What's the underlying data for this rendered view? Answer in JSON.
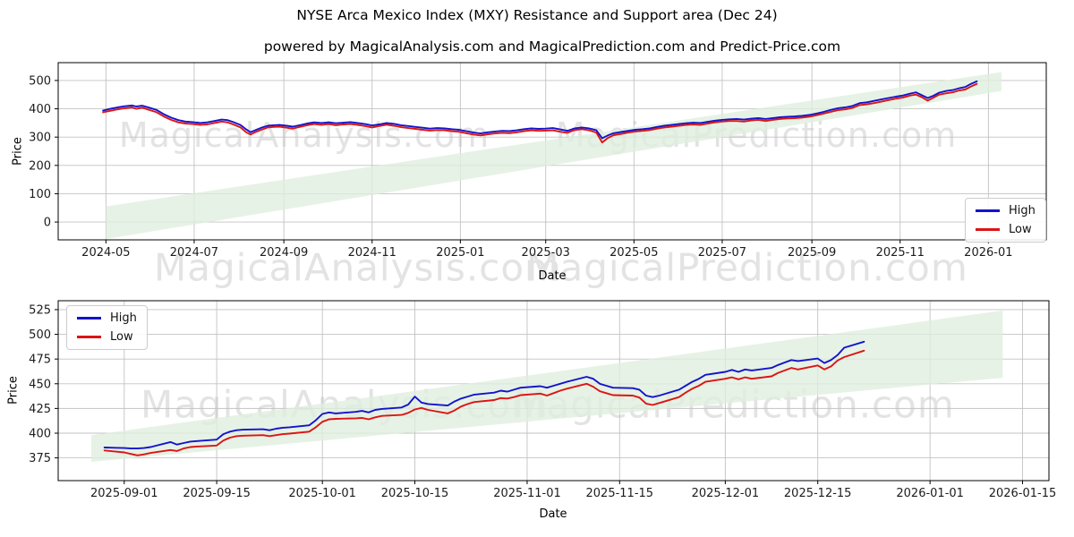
{
  "figure": {
    "title": "NYSE Arca Mexico Index (MXY) Resistance and Support area (Dec 24)",
    "subtitle": "powered by MagicalAnalysis.com and MagicalPrediction.com and Predict-Price.com"
  },
  "watermark": {
    "analysis": "MagicalAnalysis.com",
    "prediction": "MagicalPrediction.com"
  },
  "legend": {
    "high": "High",
    "low": "Low"
  },
  "colors": {
    "high": "#1313cd",
    "low": "#dc1414",
    "band": "#dfeede",
    "grid": "#c2c2c2",
    "frame": "#000000",
    "tick_text": "#1c1c1c",
    "watermark": "#e3e3e3"
  },
  "chart_data": [
    {
      "type": "line",
      "title": "",
      "xlabel": "Date",
      "ylabel": "Price",
      "xlim": [
        "2024-03-29",
        "2026-02-10"
      ],
      "ylim": [
        -63,
        563
      ],
      "grid": true,
      "legend_position": "lower right",
      "yticks": [
        0,
        100,
        200,
        300,
        400,
        500
      ],
      "xticks": [
        {
          "label": "2024-05",
          "date": "2024-05-01"
        },
        {
          "label": "2024-07",
          "date": "2024-07-01"
        },
        {
          "label": "2024-09",
          "date": "2024-09-01"
        },
        {
          "label": "2024-11",
          "date": "2024-11-01"
        },
        {
          "label": "2025-01",
          "date": "2025-01-01"
        },
        {
          "label": "2025-03",
          "date": "2025-03-01"
        },
        {
          "label": "2025-05",
          "date": "2025-05-01"
        },
        {
          "label": "2025-07",
          "date": "2025-07-01"
        },
        {
          "label": "2025-09",
          "date": "2025-09-01"
        },
        {
          "label": "2025-11",
          "date": "2025-11-01"
        },
        {
          "label": "2026-01",
          "date": "2026-01-01"
        }
      ],
      "band": {
        "x_start": "2024-05-01",
        "top_start": 55,
        "bottom_start": -60,
        "x_end": "2026-01-10",
        "top_end": 530,
        "bottom_end": 463
      },
      "x": [
        "2024-04-29",
        "2024-05-04",
        "2024-05-09",
        "2024-05-14",
        "2024-05-19",
        "2024-05-22",
        "2024-05-26",
        "2024-05-31",
        "2024-06-05",
        "2024-06-10",
        "2024-06-15",
        "2024-06-20",
        "2024-06-25",
        "2024-06-30",
        "2024-07-05",
        "2024-07-10",
        "2024-07-15",
        "2024-07-20",
        "2024-07-24",
        "2024-07-28",
        "2024-08-02",
        "2024-08-06",
        "2024-08-09",
        "2024-08-13",
        "2024-08-17",
        "2024-08-21",
        "2024-08-25",
        "2024-08-29",
        "2024-09-03",
        "2024-09-07",
        "2024-09-12",
        "2024-09-17",
        "2024-09-22",
        "2024-09-27",
        "2024-10-02",
        "2024-10-07",
        "2024-10-12",
        "2024-10-17",
        "2024-10-22",
        "2024-10-27",
        "2024-11-01",
        "2024-11-06",
        "2024-11-11",
        "2024-11-16",
        "2024-11-21",
        "2024-11-26",
        "2024-12-01",
        "2024-12-06",
        "2024-12-11",
        "2024-12-16",
        "2024-12-21",
        "2024-12-26",
        "2024-12-31",
        "2025-01-05",
        "2025-01-10",
        "2025-01-15",
        "2025-01-20",
        "2025-01-25",
        "2025-01-30",
        "2025-02-04",
        "2025-02-09",
        "2025-02-14",
        "2025-02-19",
        "2025-02-24",
        "2025-03-01",
        "2025-03-06",
        "2025-03-11",
        "2025-03-16",
        "2025-03-21",
        "2025-03-26",
        "2025-03-31",
        "2025-04-05",
        "2025-04-09",
        "2025-04-13",
        "2025-04-17",
        "2025-04-22",
        "2025-04-27",
        "2025-05-02",
        "2025-05-07",
        "2025-05-12",
        "2025-05-17",
        "2025-05-22",
        "2025-05-27",
        "2025-06-01",
        "2025-06-06",
        "2025-06-11",
        "2025-06-16",
        "2025-06-21",
        "2025-06-26",
        "2025-07-01",
        "2025-07-06",
        "2025-07-11",
        "2025-07-16",
        "2025-07-21",
        "2025-07-26",
        "2025-07-31",
        "2025-08-05",
        "2025-08-10",
        "2025-08-15",
        "2025-08-20",
        "2025-08-25",
        "2025-08-30",
        "2025-09-04",
        "2025-09-09",
        "2025-09-14",
        "2025-09-19",
        "2025-09-24",
        "2025-09-29",
        "2025-10-04",
        "2025-10-09",
        "2025-10-14",
        "2025-10-19",
        "2025-10-24",
        "2025-10-29",
        "2025-11-03",
        "2025-11-08",
        "2025-11-12",
        "2025-11-16",
        "2025-11-20",
        "2025-11-24",
        "2025-11-28",
        "2025-12-03",
        "2025-12-08",
        "2025-12-12",
        "2025-12-16",
        "2025-12-20",
        "2025-12-24"
      ],
      "series": [
        {
          "name": "High",
          "color": "#1313cd",
          "values": [
            394,
            400,
            405,
            409,
            412,
            408,
            411,
            404,
            396,
            381,
            369,
            360,
            355,
            353,
            350,
            352,
            357,
            362,
            360,
            353,
            343,
            327,
            317,
            326,
            334,
            340,
            342,
            343,
            340,
            337,
            342,
            348,
            352,
            350,
            352,
            349,
            351,
            353,
            350,
            346,
            341,
            345,
            350,
            347,
            342,
            339,
            336,
            333,
            330,
            332,
            331,
            328,
            326,
            321,
            316,
            313,
            317,
            320,
            322,
            321,
            324,
            328,
            331,
            329,
            330,
            332,
            327,
            322,
            331,
            334,
            331,
            324,
            296,
            306,
            314,
            318,
            322,
            326,
            328,
            331,
            336,
            340,
            343,
            346,
            349,
            351,
            350,
            354,
            358,
            361,
            363,
            364,
            362,
            365,
            367,
            364,
            367,
            370,
            372,
            373,
            375,
            378,
            383,
            389,
            396,
            402,
            405,
            410,
            420,
            423,
            428,
            433,
            438,
            443,
            447,
            454,
            458,
            448,
            438,
            446,
            457,
            463,
            467,
            473,
            477,
            488,
            497
          ]
        },
        {
          "name": "Low",
          "color": "#dc1414",
          "values": [
            388,
            393,
            398,
            402,
            405,
            400,
            404,
            396,
            388,
            373,
            361,
            352,
            348,
            346,
            343,
            345,
            350,
            355,
            352,
            345,
            334,
            317,
            309,
            319,
            327,
            334,
            336,
            337,
            333,
            330,
            336,
            342,
            346,
            343,
            346,
            342,
            345,
            346,
            343,
            339,
            334,
            339,
            344,
            340,
            335,
            332,
            329,
            326,
            323,
            325,
            324,
            321,
            319,
            314,
            309,
            306,
            310,
            313,
            315,
            314,
            317,
            321,
            324,
            322,
            323,
            324,
            319,
            315,
            325,
            328,
            324,
            316,
            281,
            297,
            307,
            311,
            316,
            320,
            322,
            325,
            330,
            334,
            337,
            340,
            343,
            345,
            343,
            348,
            352,
            355,
            357,
            357,
            355,
            359,
            361,
            357,
            361,
            364,
            366,
            367,
            369,
            372,
            377,
            383,
            389,
            395,
            398,
            403,
            413,
            416,
            420,
            425,
            431,
            436,
            440,
            447,
            450,
            441,
            429,
            439,
            450,
            455,
            459,
            465,
            468,
            479,
            488
          ]
        }
      ]
    },
    {
      "type": "line",
      "title": "",
      "xlabel": "Date",
      "ylabel": "Price",
      "xlim": [
        "2025-08-22",
        "2026-01-19"
      ],
      "ylim": [
        352,
        534
      ],
      "grid": true,
      "legend_position": "upper left",
      "yticks": [
        375,
        400,
        425,
        450,
        475,
        500,
        525
      ],
      "xticks": [
        {
          "label": "2025-09-01",
          "date": "2025-09-01"
        },
        {
          "label": "2025-09-15",
          "date": "2025-09-15"
        },
        {
          "label": "2025-10-01",
          "date": "2025-10-01"
        },
        {
          "label": "2025-10-15",
          "date": "2025-10-15"
        },
        {
          "label": "2025-11-01",
          "date": "2025-11-01"
        },
        {
          "label": "2025-11-15",
          "date": "2025-11-15"
        },
        {
          "label": "2025-12-01",
          "date": "2025-12-01"
        },
        {
          "label": "2025-12-15",
          "date": "2025-12-15"
        },
        {
          "label": "2026-01-01",
          "date": "2026-01-01"
        },
        {
          "label": "2026-01-15",
          "date": "2026-01-15"
        }
      ],
      "band": {
        "x_start": "2025-08-27",
        "top_start": 398,
        "bottom_start": 371,
        "x_end": "2026-01-12",
        "top_end": 524,
        "bottom_end": 456
      },
      "x": [
        "2025-08-29",
        "2025-09-01",
        "2025-09-02",
        "2025-09-03",
        "2025-09-04",
        "2025-09-05",
        "2025-09-08",
        "2025-09-09",
        "2025-09-10",
        "2025-09-11",
        "2025-09-12",
        "2025-09-15",
        "2025-09-16",
        "2025-09-17",
        "2025-09-18",
        "2025-09-19",
        "2025-09-22",
        "2025-09-23",
        "2025-09-24",
        "2025-09-25",
        "2025-09-26",
        "2025-09-29",
        "2025-09-30",
        "2025-10-01",
        "2025-10-02",
        "2025-10-03",
        "2025-10-06",
        "2025-10-07",
        "2025-10-08",
        "2025-10-09",
        "2025-10-10",
        "2025-10-13",
        "2025-10-14",
        "2025-10-15",
        "2025-10-16",
        "2025-10-17",
        "2025-10-20",
        "2025-10-21",
        "2025-10-22",
        "2025-10-23",
        "2025-10-24",
        "2025-10-27",
        "2025-10-28",
        "2025-10-29",
        "2025-10-30",
        "2025-10-31",
        "2025-11-03",
        "2025-11-04",
        "2025-11-05",
        "2025-11-06",
        "2025-11-07",
        "2025-11-10",
        "2025-11-11",
        "2025-11-12",
        "2025-11-13",
        "2025-11-14",
        "2025-11-17",
        "2025-11-18",
        "2025-11-19",
        "2025-11-20",
        "2025-11-21",
        "2025-11-24",
        "2025-11-25",
        "2025-11-26",
        "2025-11-27",
        "2025-11-28",
        "2025-12-01",
        "2025-12-02",
        "2025-12-03",
        "2025-12-04",
        "2025-12-05",
        "2025-12-08",
        "2025-12-09",
        "2025-12-10",
        "2025-12-11",
        "2025-12-12",
        "2025-12-15",
        "2025-12-16",
        "2025-12-17",
        "2025-12-18",
        "2025-12-19",
        "2025-12-22"
      ],
      "series": [
        {
          "name": "High",
          "color": "#1313cd",
          "values": [
            385.5,
            385,
            384.5,
            384.5,
            385,
            386,
            391,
            388.5,
            390,
            391.5,
            392,
            393.5,
            399,
            401.5,
            403,
            403.5,
            404,
            403,
            404.5,
            405.5,
            406,
            408,
            413,
            419.5,
            421,
            420,
            421.5,
            422.5,
            421,
            423.5,
            424.5,
            426,
            429,
            437,
            431,
            429.5,
            428,
            432,
            435,
            437,
            439,
            441,
            443,
            442,
            444,
            446,
            447.5,
            446,
            448,
            450,
            452,
            457,
            455,
            450,
            448,
            446,
            445.5,
            444,
            438,
            436.5,
            438,
            444,
            448,
            452,
            455,
            459,
            462,
            464,
            462,
            464.5,
            463.5,
            466,
            469,
            471.5,
            474,
            473,
            475.5,
            471,
            474,
            479,
            486.5,
            492.5
          ]
        },
        {
          "name": "Low",
          "color": "#dc1414",
          "values": [
            382.5,
            380.5,
            379,
            377.5,
            378.5,
            380,
            383,
            382,
            384.5,
            386,
            386.5,
            387.5,
            392.5,
            395.5,
            397,
            397.5,
            398,
            397,
            398,
            399,
            399.5,
            401.5,
            406,
            411.5,
            414,
            414.5,
            415,
            415.5,
            414,
            416,
            417.5,
            418.5,
            420.5,
            424,
            425.5,
            423.5,
            420,
            423,
            427,
            429.5,
            431.5,
            433.5,
            435.5,
            435,
            436.5,
            438.5,
            440,
            438,
            440.5,
            443,
            445,
            450,
            447,
            442.5,
            440.5,
            438.5,
            438,
            436,
            430,
            428.5,
            430.5,
            436.5,
            441,
            445,
            448,
            452,
            455,
            456.5,
            454.5,
            456.5,
            455,
            457.5,
            461,
            463.5,
            466,
            464.5,
            468.5,
            464.5,
            467.5,
            473.5,
            477,
            483.5
          ]
        }
      ]
    }
  ]
}
